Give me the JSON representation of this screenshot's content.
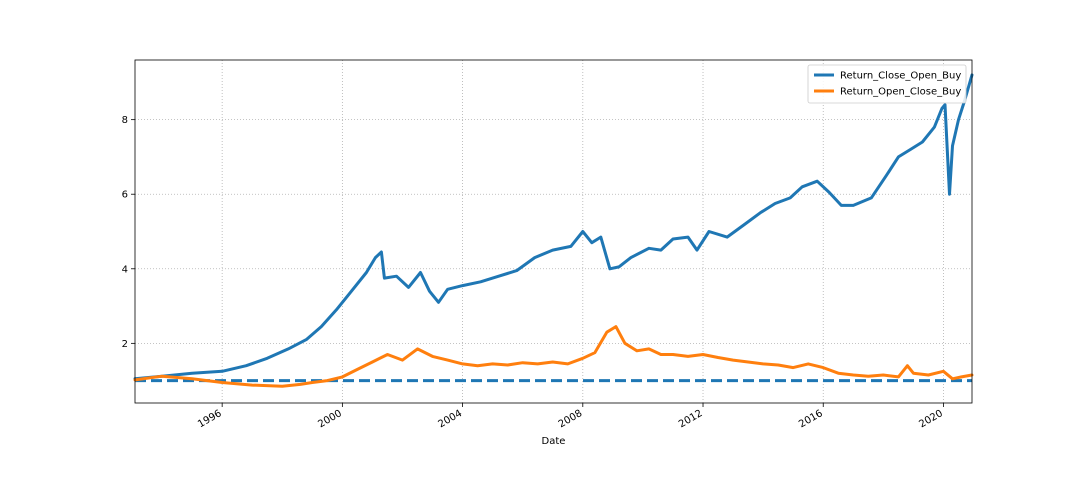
{
  "chart_data": {
    "type": "line",
    "title": "",
    "xlabel": "Date",
    "ylabel": "",
    "xlim": [
      1993.1,
      2020.95
    ],
    "ylim": [
      0.4,
      9.6
    ],
    "x_ticks": [
      1996,
      2000,
      2004,
      2008,
      2012,
      2016,
      2020
    ],
    "x_tick_labels": [
      "1996",
      "2000",
      "2004",
      "2008",
      "2012",
      "2016",
      "2020"
    ],
    "y_ticks": [
      2,
      4,
      6,
      8
    ],
    "y_tick_labels": [
      "2",
      "4",
      "6",
      "8"
    ],
    "grid": true,
    "legend_position": "top-right",
    "reference_line": {
      "y": 1.0,
      "style": "dashed",
      "color": "#1f77b4"
    },
    "series": [
      {
        "name": "Return_Close_Open_Buy",
        "color": "#1f77b4",
        "x": [
          1993.1,
          1994.0,
          1995.0,
          1996.0,
          1996.8,
          1997.5,
          1998.2,
          1998.8,
          1999.3,
          1999.8,
          2000.2,
          2000.8,
          2001.1,
          2001.3,
          2001.4,
          2001.8,
          2002.2,
          2002.6,
          2002.9,
          2003.2,
          2003.5,
          2004.0,
          2004.6,
          2005.2,
          2005.8,
          2006.4,
          2007.0,
          2007.6,
          2008.0,
          2008.3,
          2008.6,
          2008.9,
          2009.2,
          2009.6,
          2010.2,
          2010.6,
          2011.0,
          2011.5,
          2011.8,
          2012.2,
          2012.8,
          2013.4,
          2013.9,
          2014.4,
          2014.9,
          2015.3,
          2015.8,
          2016.2,
          2016.6,
          2017.0,
          2017.6,
          2018.1,
          2018.5,
          2018.9,
          2019.3,
          2019.7,
          2019.95,
          2020.05,
          2020.2,
          2020.3,
          2020.5,
          2020.7,
          2020.95
        ],
        "values": [
          1.05,
          1.12,
          1.2,
          1.25,
          1.4,
          1.6,
          1.85,
          2.1,
          2.45,
          2.9,
          3.3,
          3.9,
          4.3,
          4.45,
          3.75,
          3.8,
          3.5,
          3.9,
          3.4,
          3.1,
          3.45,
          3.55,
          3.65,
          3.8,
          3.95,
          4.3,
          4.5,
          4.6,
          5.0,
          4.7,
          4.85,
          4.0,
          4.05,
          4.3,
          4.55,
          4.5,
          4.8,
          4.85,
          4.5,
          5.0,
          4.85,
          5.2,
          5.5,
          5.75,
          5.9,
          6.2,
          6.35,
          6.05,
          5.7,
          5.7,
          5.9,
          6.5,
          7.0,
          7.2,
          7.4,
          7.8,
          8.3,
          8.4,
          6.0,
          7.3,
          8.0,
          8.5,
          9.2
        ]
      },
      {
        "name": "Return_Open_Close_Buy",
        "color": "#ff7f0e",
        "x": [
          1993.1,
          1994.0,
          1995.0,
          1996.0,
          1997.0,
          1998.0,
          1998.6,
          1999.0,
          1999.5,
          2000.0,
          2000.5,
          2001.0,
          2001.5,
          2002.0,
          2002.5,
          2003.0,
          2003.5,
          2004.0,
          2004.5,
          2005.0,
          2005.5,
          2006.0,
          2006.5,
          2007.0,
          2007.5,
          2008.0,
          2008.4,
          2008.8,
          2009.1,
          2009.4,
          2009.8,
          2010.2,
          2010.6,
          2011.0,
          2011.5,
          2012.0,
          2012.5,
          2013.0,
          2013.5,
          2014.0,
          2014.5,
          2015.0,
          2015.5,
          2016.0,
          2016.5,
          2017.0,
          2017.5,
          2018.0,
          2018.5,
          2018.8,
          2019.0,
          2019.5,
          2020.0,
          2020.3,
          2020.6,
          2020.95
        ],
        "values": [
          1.02,
          1.12,
          1.05,
          0.95,
          0.88,
          0.85,
          0.9,
          0.95,
          1.0,
          1.1,
          1.3,
          1.5,
          1.7,
          1.55,
          1.85,
          1.65,
          1.55,
          1.45,
          1.4,
          1.45,
          1.42,
          1.48,
          1.45,
          1.5,
          1.45,
          1.6,
          1.75,
          2.3,
          2.45,
          2.0,
          1.8,
          1.85,
          1.7,
          1.7,
          1.65,
          1.7,
          1.62,
          1.55,
          1.5,
          1.45,
          1.42,
          1.35,
          1.45,
          1.35,
          1.2,
          1.15,
          1.12,
          1.15,
          1.1,
          1.4,
          1.2,
          1.15,
          1.25,
          1.05,
          1.1,
          1.15
        ]
      }
    ]
  }
}
